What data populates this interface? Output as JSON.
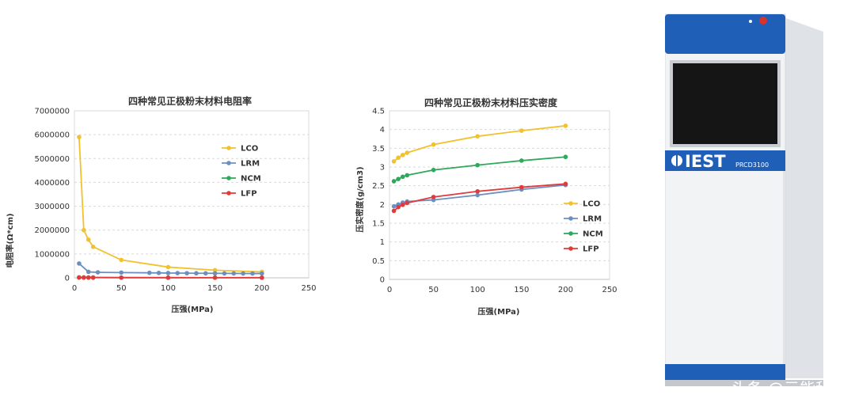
{
  "chart_data": [
    {
      "type": "line",
      "title": "四种常见正极粉末材料电阻率",
      "xlabel": "压强(MPa)",
      "ylabel": "电阻率(Ω*cm)",
      "xlim": [
        0,
        250
      ],
      "ylim": [
        0,
        7000000
      ],
      "xticks": [
        0,
        50,
        100,
        150,
        200,
        250
      ],
      "yticks": [
        0,
        1000000,
        2000000,
        3000000,
        4000000,
        5000000,
        6000000,
        7000000
      ],
      "grid": "horizontal-dashed",
      "legend_position": "right",
      "series": [
        {
          "name": "LCO",
          "color": "#f2c12e",
          "x": [
            5,
            10,
            15,
            20,
            50,
            100,
            150,
            200
          ],
          "y": [
            5900000,
            2000000,
            1600000,
            1300000,
            750000,
            450000,
            320000,
            250000
          ]
        },
        {
          "name": "LRM",
          "color": "#6b8fc1",
          "x": [
            5,
            15,
            25,
            50,
            80,
            90,
            100,
            110,
            120,
            130,
            140,
            150,
            160,
            170,
            180,
            190,
            200
          ],
          "y": [
            600000,
            250000,
            230000,
            220000,
            210000,
            205000,
            200000,
            198000,
            195000,
            192000,
            190000,
            188000,
            186000,
            184000,
            182000,
            181000,
            180000
          ]
        },
        {
          "name": "NCM",
          "color": "#2ea85a",
          "x": [
            5,
            10,
            15,
            20,
            50,
            100,
            150,
            200
          ],
          "y": [
            20000,
            18000,
            16000,
            15000,
            12000,
            10000,
            9000,
            8000
          ]
        },
        {
          "name": "LFP",
          "color": "#e03a3a",
          "x": [
            5,
            10,
            15,
            20,
            50,
            100,
            150,
            200
          ],
          "y": [
            10000,
            9000,
            8000,
            7500,
            6000,
            5000,
            4500,
            4000
          ]
        }
      ]
    },
    {
      "type": "line",
      "title": "四种常见正极粉末材料压实密度",
      "xlabel": "压强(MPa)",
      "ylabel": "压实密度(g/cm3)",
      "xlim": [
        0,
        250
      ],
      "ylim": [
        0,
        4.5
      ],
      "xticks": [
        0,
        50,
        100,
        150,
        200,
        250
      ],
      "yticks": [
        0,
        0.5,
        1,
        1.5,
        2,
        2.5,
        3,
        3.5,
        4,
        4.5
      ],
      "grid": "horizontal-dashed",
      "legend_position": "right",
      "series": [
        {
          "name": "LCO",
          "color": "#f2c12e",
          "x": [
            5,
            10,
            15,
            20,
            50,
            100,
            150,
            200
          ],
          "y": [
            3.15,
            3.25,
            3.32,
            3.38,
            3.6,
            3.82,
            3.97,
            4.1
          ]
        },
        {
          "name": "LRM",
          "color": "#6b8fc1",
          "x": [
            5,
            10,
            15,
            20,
            50,
            100,
            150,
            200
          ],
          "y": [
            1.95,
            2.0,
            2.05,
            2.08,
            2.12,
            2.25,
            2.4,
            2.52
          ]
        },
        {
          "name": "NCM",
          "color": "#2ea85a",
          "x": [
            5,
            10,
            15,
            20,
            50,
            100,
            150,
            200
          ],
          "y": [
            2.62,
            2.68,
            2.74,
            2.78,
            2.92,
            3.05,
            3.17,
            3.27
          ]
        },
        {
          "name": "LFP",
          "color": "#e03a3a",
          "x": [
            5,
            10,
            15,
            20,
            50,
            100,
            150,
            200
          ],
          "y": [
            1.83,
            1.93,
            1.99,
            2.04,
            2.2,
            2.35,
            2.46,
            2.55
          ]
        }
      ]
    }
  ],
  "device": {
    "brand": "IEST",
    "model": "PRCD3100",
    "colors": {
      "panel": "#1f5fb8",
      "body": "#eef0f2",
      "screen": "#151515",
      "button": "#d9322b"
    }
  },
  "watermark": "头条 @元能科技"
}
